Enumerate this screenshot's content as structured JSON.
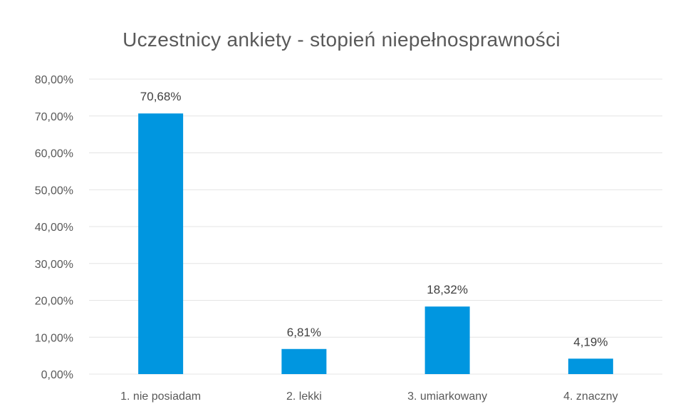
{
  "chart_data": {
    "type": "bar",
    "title": "Uczestnicy ankiety - stopień niepełnosprawności",
    "categories": [
      "1. nie posiadam",
      "2. lekki",
      "3. umiarkowany",
      "4. znaczny"
    ],
    "values": [
      70.68,
      6.81,
      18.32,
      4.19
    ],
    "data_labels": [
      "70,68%",
      "6,81%",
      "18,32%",
      "4,19%"
    ],
    "y_ticks": [
      "0,00%",
      "10,00%",
      "20,00%",
      "30,00%",
      "40,00%",
      "50,00%",
      "60,00%",
      "70,00%",
      "80,00%"
    ],
    "ylim": [
      0,
      80
    ],
    "grid": true,
    "legend": "none",
    "bar_color": "#0096E0",
    "grid_color": "#E4E4E4"
  }
}
